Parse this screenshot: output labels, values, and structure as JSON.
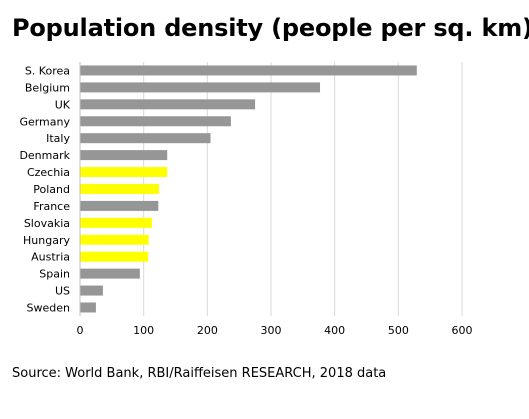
{
  "chart_data": {
    "type": "bar",
    "orientation": "horizontal",
    "title": "Population density (people per sq. km)",
    "source": "Source: World Bank, RBI/Raiffeisen RESEARCH, 2018 data",
    "categories": [
      "S. Korea",
      "Belgium",
      "UK",
      "Germany",
      "Italy",
      "Denmark",
      "Czechia",
      "Poland",
      "France",
      "Slovakia",
      "Hungary",
      "Austria",
      "Spain",
      "US",
      "Sweden"
    ],
    "values": [
      529,
      377,
      275,
      237,
      205,
      137,
      137,
      124,
      123,
      113,
      108,
      107,
      94,
      36,
      25
    ],
    "bar_colors": [
      "#969696",
      "#969696",
      "#969696",
      "#969696",
      "#969696",
      "#969696",
      "#ffff00",
      "#ffff00",
      "#969696",
      "#ffff00",
      "#ffff00",
      "#ffff00",
      "#969696",
      "#969696",
      "#969696"
    ],
    "xlim": [
      0,
      600
    ],
    "xticks": [
      0,
      100,
      200,
      300,
      400,
      500,
      600
    ],
    "grid": true,
    "legend": "none"
  }
}
